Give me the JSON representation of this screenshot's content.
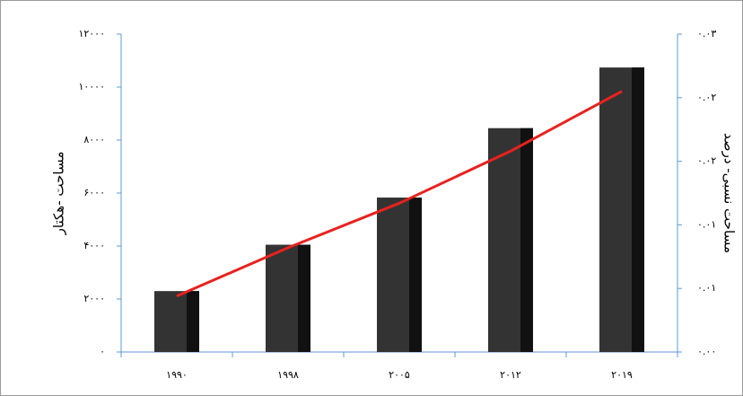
{
  "chart_data": {
    "type": "bar-line",
    "y_label": "مساحت -هکتار",
    "y2_label": "مساحت نسبی- درصد",
    "categories": [
      "۱۹۹۰",
      "۱۹۹۸",
      "۲۰۰۵",
      "۲۰۱۲",
      "۲۰۱۹"
    ],
    "series": [
      {
        "type": "bar",
        "color": "#333333",
        "values": [
          2300,
          4050,
          5830,
          8450,
          10740
        ]
      },
      {
        "type": "line",
        "axis": "y2",
        "color": "#e8221e",
        "values": [
          0.0044,
          0.0082,
          0.0117,
          0.0158,
          0.0205
        ]
      }
    ],
    "ylim": [
      0,
      12000
    ],
    "yticks": [
      {
        "value": 0,
        "label": "۰"
      },
      {
        "value": 2000,
        "label": "۲۰۰۰"
      },
      {
        "value": 4000,
        "label": "۴۰۰۰"
      },
      {
        "value": 6000,
        "label": "۶۰۰۰"
      },
      {
        "value": 8000,
        "label": "۸۰۰۰"
      },
      {
        "value": 10000,
        "label": "۱۰۰۰۰"
      },
      {
        "value": 12000,
        "label": "۱۲۰۰۰"
      }
    ],
    "y2lim": [
      0,
      0.025
    ],
    "y2ticks": [
      {
        "value": 0,
        "label": "۰.۰۰"
      },
      {
        "value": 0.005,
        "label": "۰.۰۱"
      },
      {
        "value": 0.01,
        "label": "۰.۰۱"
      },
      {
        "value": 0.015,
        "label": "۰.۰۲"
      },
      {
        "value": 0.02,
        "label": "۰.۰۲"
      },
      {
        "value": 0.025,
        "label": "۰.۰۳"
      }
    ]
  }
}
